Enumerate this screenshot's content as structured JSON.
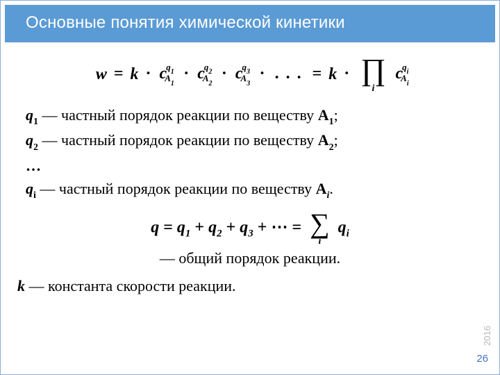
{
  "title": "Основные понятия химической кинетики",
  "formula1": {
    "w": "w",
    "eq": "=",
    "k": "k",
    "dot": "·",
    "terms": [
      {
        "c": "c",
        "sub_A": "A",
        "sub_idx": "1",
        "sup_q": "q",
        "sup_idx": "1"
      },
      {
        "c": "c",
        "sub_A": "A",
        "sub_idx": "2",
        "sup_q": "q",
        "sup_idx": "2"
      },
      {
        "c": "c",
        "sub_A": "A",
        "sub_idx": "3",
        "sup_q": "q",
        "sup_idx": "3"
      }
    ],
    "dots": ". . .",
    "prod_sym": "∏",
    "prod_idx": "i",
    "last": {
      "c": "c",
      "sub_A": "A",
      "sub_idx": "i",
      "sup_q": "q",
      "sup_idx": "i"
    }
  },
  "defs": {
    "d1": {
      "q": "q",
      "sub": "1",
      "dash": " — ",
      "text": "частный порядок реакции по веществу ",
      "A": "A",
      "Asub": "1",
      "end": ";"
    },
    "d2": {
      "q": "q",
      "sub": "2",
      "dash": " — ",
      "text": "частный порядок реакции по веществу ",
      "A": "A",
      "Asub": "2",
      "end": ";"
    },
    "ellipsis": "…",
    "di": {
      "q": "q",
      "sub": "i",
      "dash": " — ",
      "text": "частный порядок реакции по веществу ",
      "A": "A",
      "Asub": "i",
      "end": "."
    }
  },
  "formula2": {
    "q": "q",
    "eq": "=",
    "plus": "+",
    "terms": [
      {
        "q": "q",
        "sub": "1"
      },
      {
        "q": "q",
        "sub": "2"
      },
      {
        "q": "q",
        "sub": "3"
      }
    ],
    "dots": "⋯",
    "sum_sym": "∑",
    "sum_idx": "i",
    "last": {
      "q": "q",
      "sub": "i"
    }
  },
  "overall_order": "— общий порядок реакции.",
  "k_def": {
    "k": "k",
    "text": " — константа скорости реакции."
  },
  "year": "2016",
  "page": "26",
  "colors": {
    "title_bg": "#5b9bd5",
    "title_fg": "#ffffff",
    "border": "#8faadc",
    "pagenum": "#4472c4",
    "year": "#b7b7b7"
  }
}
